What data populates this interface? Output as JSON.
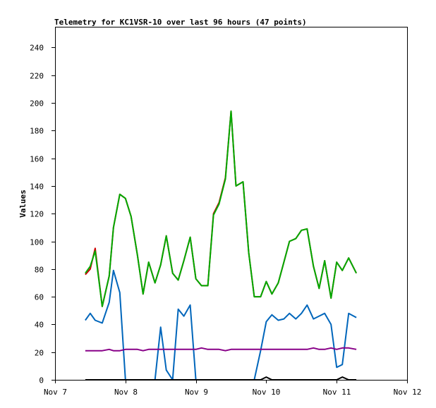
{
  "chart_data": {
    "type": "line",
    "title": "Telemetry for KC1VSR-10 over last 96 hours (47 points)",
    "xlabel": "",
    "ylabel": "Values",
    "ylim": [
      0,
      255
    ],
    "yticks": [
      0,
      20,
      40,
      60,
      80,
      100,
      120,
      140,
      160,
      180,
      200,
      220,
      240
    ],
    "xlim": [
      0,
      5
    ],
    "xticks": [
      {
        "v": 0,
        "label": "Nov 7"
      },
      {
        "v": 1,
        "label": "Nov 8"
      },
      {
        "v": 2,
        "label": "Nov 9"
      },
      {
        "v": 3,
        "label": "Nov 10"
      },
      {
        "v": 4,
        "label": "Nov 11"
      },
      {
        "v": 5,
        "label": "Nov 12"
      }
    ],
    "grid": false,
    "legend": "none",
    "x": [
      0.43,
      0.5,
      0.57,
      0.67,
      0.77,
      0.83,
      0.92,
      1.0,
      1.08,
      1.17,
      1.25,
      1.33,
      1.42,
      1.5,
      1.58,
      1.67,
      1.75,
      1.83,
      1.92,
      2.0,
      2.08,
      2.17,
      2.25,
      2.33,
      2.42,
      2.5,
      2.57,
      2.67,
      2.75,
      2.83,
      2.92,
      3.0,
      3.08,
      3.17,
      3.25,
      3.33,
      3.42,
      3.5,
      3.58,
      3.67,
      3.75,
      3.83,
      3.92,
      4.0,
      4.08,
      4.17,
      4.28
    ],
    "series": [
      {
        "color": "#cc0000",
        "values": [
          76,
          80,
          95,
          53,
          75,
          110,
          134,
          131,
          118,
          90,
          62,
          85,
          70,
          83,
          104,
          77,
          72,
          86,
          103,
          73,
          68,
          68,
          120,
          128,
          146,
          194,
          140,
          143,
          92,
          60,
          60,
          71,
          62,
          70,
          85,
          100,
          102,
          108,
          109,
          82,
          66,
          86,
          59,
          85,
          79,
          88,
          77
        ]
      },
      {
        "color": "#00aa00",
        "values": [
          77,
          82,
          93,
          53,
          75,
          110,
          134,
          131,
          118,
          90,
          62,
          85,
          70,
          83,
          104,
          77,
          72,
          86,
          103,
          73,
          68,
          68,
          119,
          127,
          145,
          194,
          140,
          143,
          92,
          60,
          60,
          71,
          62,
          70,
          85,
          100,
          102,
          108,
          109,
          82,
          66,
          86,
          59,
          85,
          79,
          88,
          77
        ]
      },
      {
        "color": "#0066bb",
        "values": [
          43,
          48,
          43,
          41,
          56,
          79,
          63,
          0,
          0,
          0,
          0,
          0,
          0,
          38,
          7,
          0,
          51,
          46,
          54,
          0,
          0,
          0,
          0,
          0,
          0,
          0,
          0,
          0,
          0,
          0,
          21,
          42,
          47,
          43,
          44,
          48,
          44,
          48,
          54,
          44,
          46,
          48,
          40,
          9,
          11,
          48,
          45
        ]
      },
      {
        "color": "#880088",
        "values": [
          21,
          21,
          21,
          21,
          22,
          21,
          21,
          22,
          22,
          22,
          21,
          22,
          22,
          22,
          22,
          22,
          22,
          22,
          22,
          22,
          23,
          22,
          22,
          22,
          21,
          22,
          22,
          22,
          22,
          22,
          22,
          22,
          22,
          22,
          22,
          22,
          22,
          22,
          22,
          23,
          22,
          22,
          23,
          22,
          23,
          23,
          22
        ]
      },
      {
        "color": "#000000",
        "values": [
          0,
          0,
          0,
          0,
          0,
          0,
          0,
          0,
          0,
          0,
          0,
          0,
          0,
          0,
          0,
          0,
          0,
          0,
          0,
          0,
          0,
          0,
          0,
          0,
          0,
          0,
          0,
          0,
          0,
          0,
          0,
          2,
          0,
          0,
          0,
          0,
          0,
          0,
          0,
          0,
          0,
          0,
          0,
          0,
          2,
          0,
          0
        ]
      }
    ]
  }
}
